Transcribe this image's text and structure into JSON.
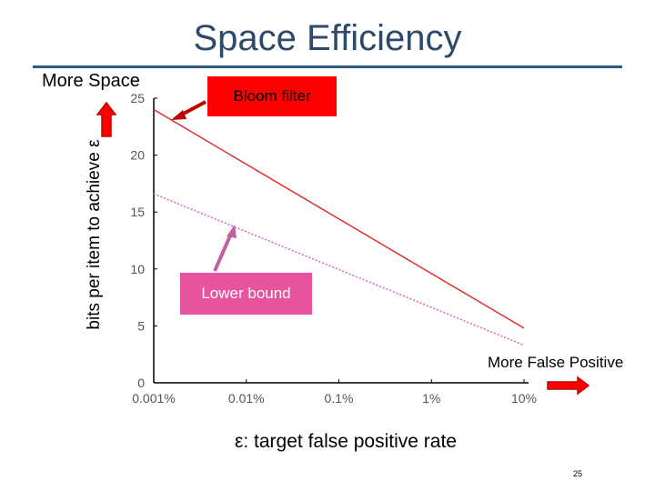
{
  "slide": {
    "title": "Space Efficiency",
    "more_space_label": "More Space",
    "more_false_positive_label": "More False Positive",
    "bloom_callout": "Bloom filter",
    "lower_bound_callout": "Lower bound",
    "page_number": "25",
    "colors": {
      "title": "#2e4a6b",
      "rule": "#2e5a86",
      "bloom": "#ff0000",
      "lower_bound": "#e8539e",
      "axis_text": "#555555"
    }
  },
  "chart_data": {
    "type": "line",
    "xlabel": "ε: target false positive rate",
    "ylabel": "bits per item to achieve ε",
    "x_scale": "log",
    "x_ticks": [
      "0.001%",
      "0.01%",
      "0.1%",
      "1%",
      "10%"
    ],
    "y_ticks": [
      "0",
      "5",
      "10",
      "15",
      "20",
      "25"
    ],
    "ylim": [
      0,
      25
    ],
    "xlim": [
      "0.001%",
      "10%"
    ],
    "grid": false,
    "series": [
      {
        "name": "Bloom filter",
        "color": "#e03030",
        "style": "solid",
        "points": [
          {
            "x": "0.001%",
            "y": 24
          },
          {
            "x": "10%",
            "y": 4.8
          }
        ]
      },
      {
        "name": "Lower bound",
        "color": "#e060c0",
        "style": "dotted",
        "points": [
          {
            "x": "0.001%",
            "y": 16.6
          },
          {
            "x": "10%",
            "y": 3.3
          }
        ]
      }
    ]
  }
}
